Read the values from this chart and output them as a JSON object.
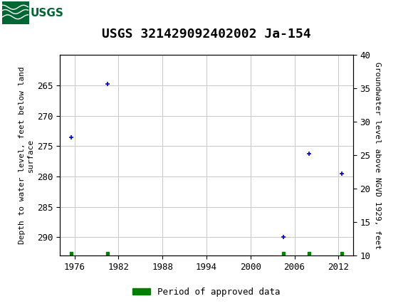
{
  "title": "USGS 321429092402002 Ja-154",
  "ylabel_left": "Depth to water level, feet below land\nsurface",
  "ylabel_right": "Groundwater level above NGVD 1929, feet",
  "xlim": [
    1974,
    2014
  ],
  "ylim_left_bottom": 293,
  "ylim_left_top": 260,
  "ylim_right_bottom": 10,
  "ylim_right_top": 40,
  "xticks": [
    1976,
    1982,
    1988,
    1994,
    2000,
    2006,
    2012
  ],
  "yticks_left": [
    265,
    270,
    275,
    280,
    285,
    290
  ],
  "yticks_right": [
    10,
    15,
    20,
    25,
    30,
    35,
    40
  ],
  "blue_points": [
    {
      "x": 1975.5,
      "depth": 273.5
    },
    {
      "x": 1980.5,
      "depth": 264.7
    },
    {
      "x": 2004.5,
      "depth": 290.0
    },
    {
      "x": 2008.0,
      "depth": 276.2
    },
    {
      "x": 2012.5,
      "depth": 279.5
    }
  ],
  "green_points_x": [
    1975.5,
    1980.5,
    2004.5,
    2008.0,
    2012.5
  ],
  "green_depth": 292.6,
  "header_bg": "#006633",
  "grid_color": "#c8c8c8",
  "blue_color": "#0000cc",
  "green_color": "#008000",
  "legend_label": "Period of approved data",
  "title_fontsize": 13,
  "tick_fontsize": 9,
  "label_fontsize": 8
}
